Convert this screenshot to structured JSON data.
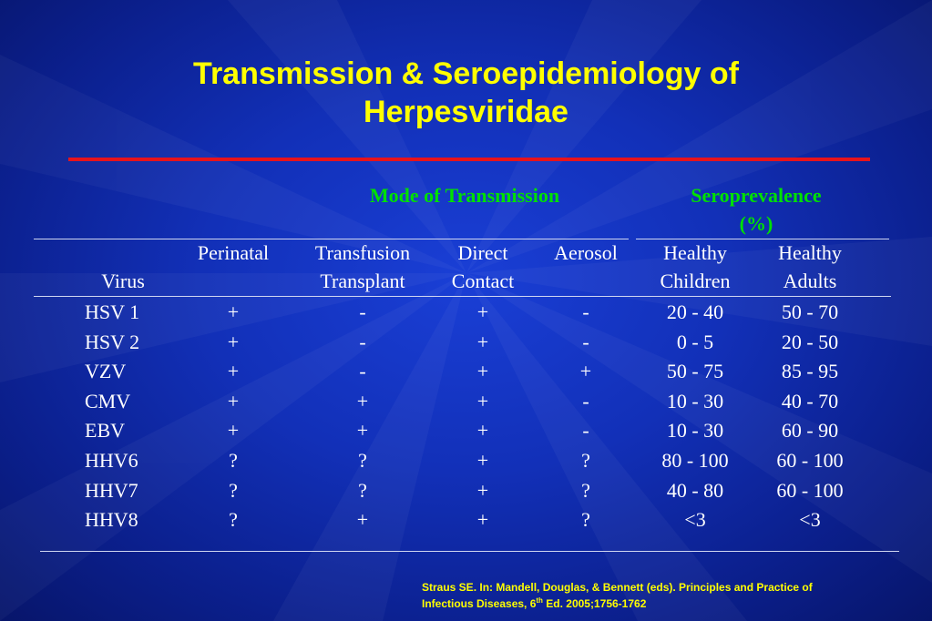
{
  "slide": {
    "title_line1": "Transmission & Seroepidemiology of",
    "title_line2": "Herpesviridae",
    "group_transmission": "Mode of Transmission",
    "group_sero_line1": "Seroprevalence",
    "group_sero_line2": "(%)",
    "columns": [
      {
        "line1": "",
        "line2": "Virus"
      },
      {
        "line1": "Perinatal",
        "line2": ""
      },
      {
        "line1": "Transfusion",
        "line2": "Transplant"
      },
      {
        "line1": "Direct",
        "line2": "Contact"
      },
      {
        "line1": "Aerosol",
        "line2": ""
      },
      {
        "line1": "Healthy",
        "line2": "Children"
      },
      {
        "line1": "Healthy",
        "line2": "Adults"
      }
    ],
    "rows": [
      [
        "HSV 1",
        "+",
        "-",
        "+",
        "-",
        "20 - 40",
        "50 - 70"
      ],
      [
        "HSV 2",
        "+",
        "-",
        "+",
        "-",
        "0 - 5",
        "20 - 50"
      ],
      [
        "VZV",
        "+",
        "-",
        "+",
        "+",
        "50 - 75",
        "85 - 95"
      ],
      [
        "CMV",
        "+",
        "+",
        "+",
        "-",
        "10 - 30",
        "40 - 70"
      ],
      [
        "EBV",
        "+",
        "+",
        "+",
        "-",
        "10 - 30",
        "60 - 90"
      ],
      [
        "HHV6",
        "?",
        "?",
        "+",
        "?",
        "80 - 100",
        "60 - 100"
      ],
      [
        "HHV7",
        "?",
        "?",
        "+",
        "?",
        "40 - 80",
        "60 - 100"
      ],
      [
        "HHV8",
        "?",
        "+",
        "+",
        "?",
        "<3",
        "<3"
      ]
    ],
    "citation_line1": "Straus SE. In: Mandell, Douglas, & Bennett (eds). Principles and Practice of",
    "citation_line2_pre": "Infectious Diseases, 6",
    "citation_line2_sup": "th",
    "citation_line2_post": " Ed. 2005;1756-1762"
  },
  "colors": {
    "title": "#ffff00",
    "group_header": "#00e000",
    "rule": "#e8131b",
    "background": "#1230b8"
  }
}
